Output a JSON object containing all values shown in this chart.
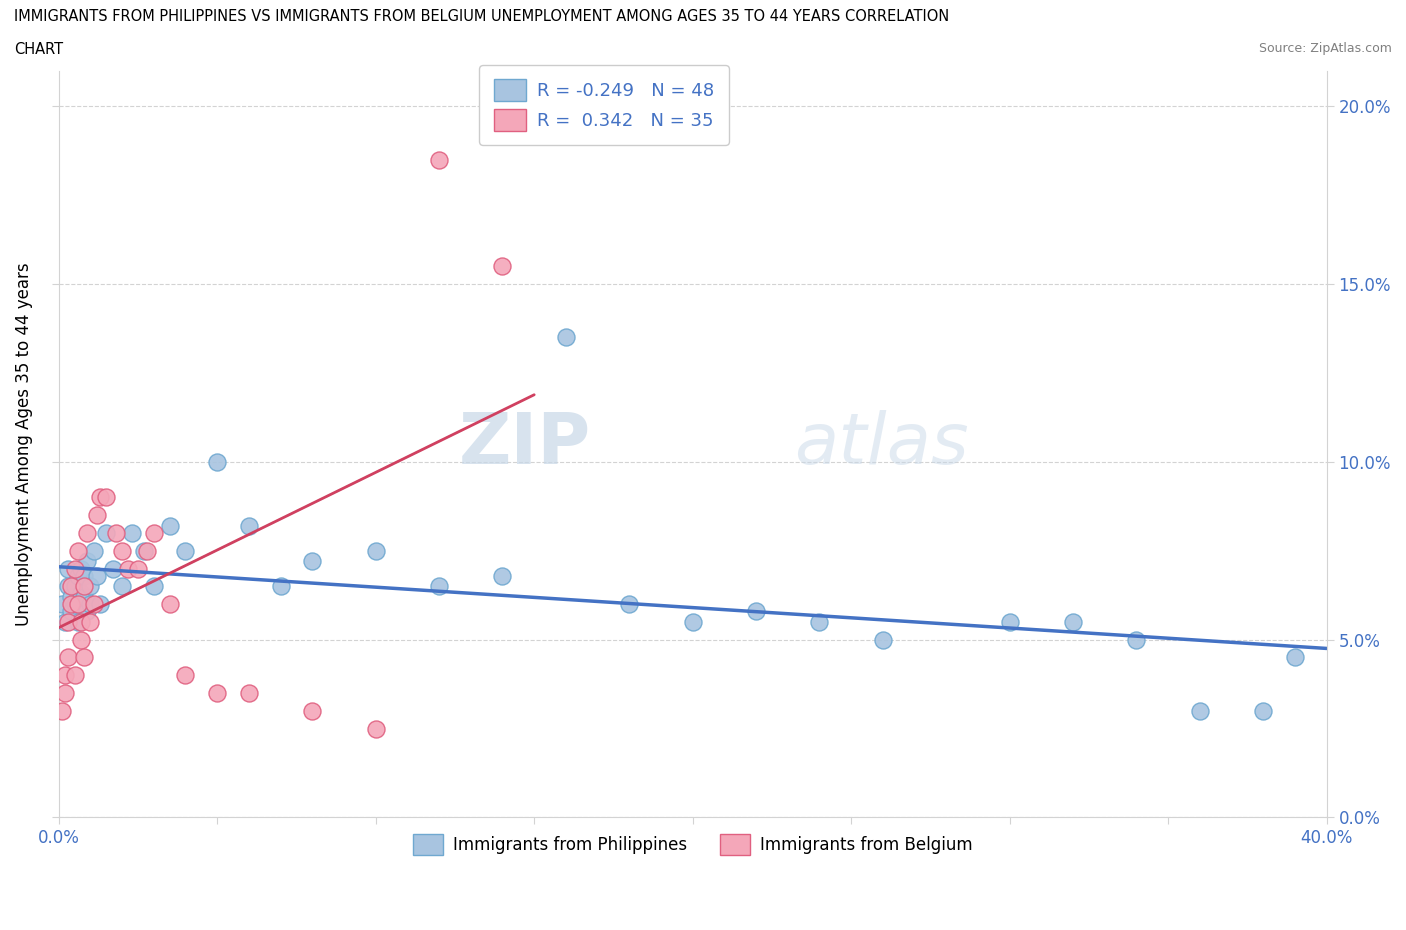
{
  "title_line1": "IMMIGRANTS FROM PHILIPPINES VS IMMIGRANTS FROM BELGIUM UNEMPLOYMENT AMONG AGES 35 TO 44 YEARS CORRELATION",
  "title_line2": "CHART",
  "source": "Source: ZipAtlas.com",
  "ylabel": "Unemployment Among Ages 35 to 44 years",
  "xlim": [
    0.0,
    0.4
  ],
  "ylim": [
    0.0,
    0.21
  ],
  "xticks": [
    0.0,
    0.05,
    0.1,
    0.15,
    0.2,
    0.25,
    0.3,
    0.35,
    0.4
  ],
  "yticks": [
    0.0,
    0.05,
    0.1,
    0.15,
    0.2
  ],
  "philippines_color": "#a8c4e0",
  "philippines_edge": "#6fa8d0",
  "belgium_color": "#f4a7b9",
  "belgium_edge": "#e06080",
  "trend_philippines_color": "#4472c4",
  "trend_belgium_color": "#d04060",
  "watermark_zip": "ZIP",
  "watermark_atlas": "atlas",
  "legend_text_1": "R = -0.249   N = 48",
  "legend_text_2": "R =  0.342   N = 35",
  "philippines_x": [
    0.001,
    0.002,
    0.003,
    0.003,
    0.004,
    0.004,
    0.005,
    0.005,
    0.006,
    0.006,
    0.007,
    0.007,
    0.008,
    0.008,
    0.009,
    0.009,
    0.01,
    0.01,
    0.011,
    0.012,
    0.013,
    0.015,
    0.017,
    0.02,
    0.023,
    0.027,
    0.03,
    0.035,
    0.04,
    0.05,
    0.06,
    0.07,
    0.08,
    0.1,
    0.12,
    0.14,
    0.16,
    0.18,
    0.2,
    0.22,
    0.24,
    0.26,
    0.3,
    0.32,
    0.34,
    0.36,
    0.38,
    0.39
  ],
  "philippines_y": [
    0.06,
    0.055,
    0.065,
    0.07,
    0.058,
    0.062,
    0.06,
    0.065,
    0.068,
    0.055,
    0.063,
    0.07,
    0.062,
    0.068,
    0.058,
    0.072,
    0.06,
    0.065,
    0.075,
    0.068,
    0.06,
    0.08,
    0.07,
    0.065,
    0.08,
    0.075,
    0.065,
    0.082,
    0.075,
    0.1,
    0.082,
    0.065,
    0.072,
    0.075,
    0.065,
    0.068,
    0.135,
    0.06,
    0.055,
    0.058,
    0.055,
    0.05,
    0.055,
    0.055,
    0.05,
    0.03,
    0.03,
    0.045
  ],
  "belgium_x": [
    0.001,
    0.002,
    0.002,
    0.003,
    0.003,
    0.004,
    0.004,
    0.005,
    0.005,
    0.006,
    0.006,
    0.007,
    0.007,
    0.008,
    0.008,
    0.009,
    0.01,
    0.011,
    0.012,
    0.013,
    0.015,
    0.018,
    0.02,
    0.022,
    0.025,
    0.028,
    0.03,
    0.035,
    0.04,
    0.05,
    0.06,
    0.08,
    0.1,
    0.12,
    0.14
  ],
  "belgium_y": [
    0.03,
    0.04,
    0.035,
    0.055,
    0.045,
    0.06,
    0.065,
    0.04,
    0.07,
    0.06,
    0.075,
    0.05,
    0.055,
    0.045,
    0.065,
    0.08,
    0.055,
    0.06,
    0.085,
    0.09,
    0.09,
    0.08,
    0.075,
    0.07,
    0.07,
    0.075,
    0.08,
    0.06,
    0.04,
    0.035,
    0.035,
    0.03,
    0.025,
    0.185,
    0.155
  ]
}
